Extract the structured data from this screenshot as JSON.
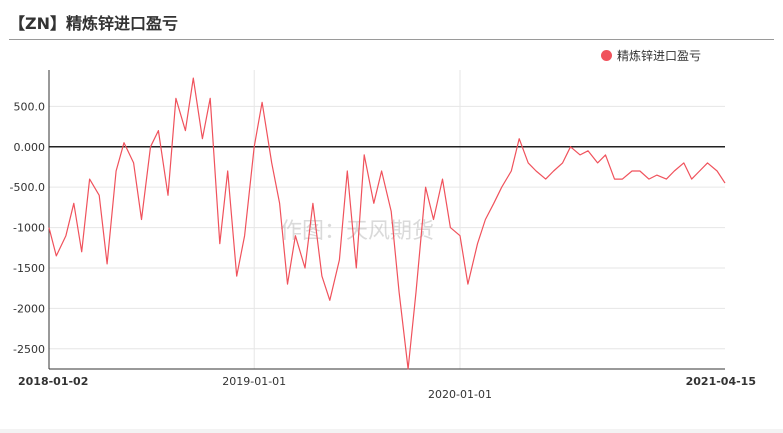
{
  "title": "【ZN】精炼锌进口盈亏",
  "legend": {
    "label": "精炼锌进口盈亏"
  },
  "watermark": "作图：天风期货",
  "colors": {
    "series": "#f0525c",
    "zero_line": "#222222",
    "grid": "#e6e6e6",
    "axis_text": "#333333"
  },
  "chart_data": {
    "type": "line",
    "title": "【ZN】精炼锌进口盈亏",
    "xlabel": "",
    "ylabel": "",
    "xlim": [
      "2018-01-02",
      "2021-04-15"
    ],
    "ylim": [
      -2750,
      950
    ],
    "yticks": [
      500,
      0,
      -500,
      -1000,
      -1500,
      -2000,
      -2500
    ],
    "ytick_labels": [
      "500.0",
      "0.000",
      "-500.0",
      "-1000",
      "-1500",
      "-2000",
      "-2500"
    ],
    "xticks": [
      "2018-01-02",
      "2019-01-01",
      "2020-01-01",
      "2021-04-15"
    ],
    "xtick_labels": [
      "2018-01-02",
      "2019-01-01",
      "2020-01-01",
      "2021-04-15"
    ],
    "grid": true,
    "legend_position": "top-right",
    "series": [
      {
        "name": "精炼锌进口盈亏",
        "points": [
          [
            "2018-01-02",
            -1000
          ],
          [
            "2018-01-15",
            -1350
          ],
          [
            "2018-02-01",
            -1100
          ],
          [
            "2018-02-15",
            -700
          ],
          [
            "2018-03-01",
            -1300
          ],
          [
            "2018-03-15",
            -400
          ],
          [
            "2018-04-01",
            -600
          ],
          [
            "2018-04-15",
            -1450
          ],
          [
            "2018-05-01",
            -300
          ],
          [
            "2018-05-15",
            50
          ],
          [
            "2018-06-01",
            -200
          ],
          [
            "2018-06-15",
            -900
          ],
          [
            "2018-07-01",
            0
          ],
          [
            "2018-07-15",
            200
          ],
          [
            "2018-08-01",
            -600
          ],
          [
            "2018-08-15",
            600
          ],
          [
            "2018-09-01",
            200
          ],
          [
            "2018-09-15",
            850
          ],
          [
            "2018-10-01",
            100
          ],
          [
            "2018-10-15",
            600
          ],
          [
            "2018-11-01",
            -1200
          ],
          [
            "2018-11-15",
            -300
          ],
          [
            "2018-12-01",
            -1600
          ],
          [
            "2018-12-15",
            -1100
          ],
          [
            "2019-01-01",
            0
          ],
          [
            "2019-01-15",
            550
          ],
          [
            "2019-02-01",
            -200
          ],
          [
            "2019-02-15",
            -700
          ],
          [
            "2019-03-01",
            -1700
          ],
          [
            "2019-03-15",
            -1100
          ],
          [
            "2019-04-01",
            -1500
          ],
          [
            "2019-04-15",
            -700
          ],
          [
            "2019-05-01",
            -1600
          ],
          [
            "2019-05-15",
            -1900
          ],
          [
            "2019-06-01",
            -1400
          ],
          [
            "2019-06-15",
            -300
          ],
          [
            "2019-07-01",
            -1500
          ],
          [
            "2019-07-15",
            -100
          ],
          [
            "2019-08-01",
            -700
          ],
          [
            "2019-08-15",
            -300
          ],
          [
            "2019-09-01",
            -800
          ],
          [
            "2019-09-15",
            -1800
          ],
          [
            "2019-10-01",
            -2750
          ],
          [
            "2019-10-15",
            -1800
          ],
          [
            "2019-11-01",
            -500
          ],
          [
            "2019-11-15",
            -900
          ],
          [
            "2019-12-01",
            -400
          ],
          [
            "2019-12-15",
            -1000
          ],
          [
            "2020-01-01",
            -1100
          ],
          [
            "2020-01-15",
            -1700
          ],
          [
            "2020-02-01",
            -1200
          ],
          [
            "2020-02-15",
            -900
          ],
          [
            "2020-03-01",
            -700
          ],
          [
            "2020-03-15",
            -500
          ],
          [
            "2020-04-01",
            -300
          ],
          [
            "2020-04-15",
            100
          ],
          [
            "2020-05-01",
            -200
          ],
          [
            "2020-05-15",
            -300
          ],
          [
            "2020-06-01",
            -400
          ],
          [
            "2020-06-15",
            -300
          ],
          [
            "2020-07-01",
            -200
          ],
          [
            "2020-07-15",
            0
          ],
          [
            "2020-08-01",
            -100
          ],
          [
            "2020-08-15",
            -50
          ],
          [
            "2020-09-01",
            -200
          ],
          [
            "2020-09-15",
            -100
          ],
          [
            "2020-10-01",
            -400
          ],
          [
            "2020-10-15",
            -400
          ],
          [
            "2020-11-01",
            -300
          ],
          [
            "2020-11-15",
            -300
          ],
          [
            "2020-12-01",
            -400
          ],
          [
            "2020-12-15",
            -350
          ],
          [
            "2021-01-01",
            -400
          ],
          [
            "2021-01-15",
            -300
          ],
          [
            "2021-02-01",
            -200
          ],
          [
            "2021-02-15",
            -400
          ],
          [
            "2021-03-01",
            -300
          ],
          [
            "2021-03-15",
            -200
          ],
          [
            "2021-04-01",
            -300
          ],
          [
            "2021-04-15",
            -450
          ]
        ]
      }
    ]
  }
}
